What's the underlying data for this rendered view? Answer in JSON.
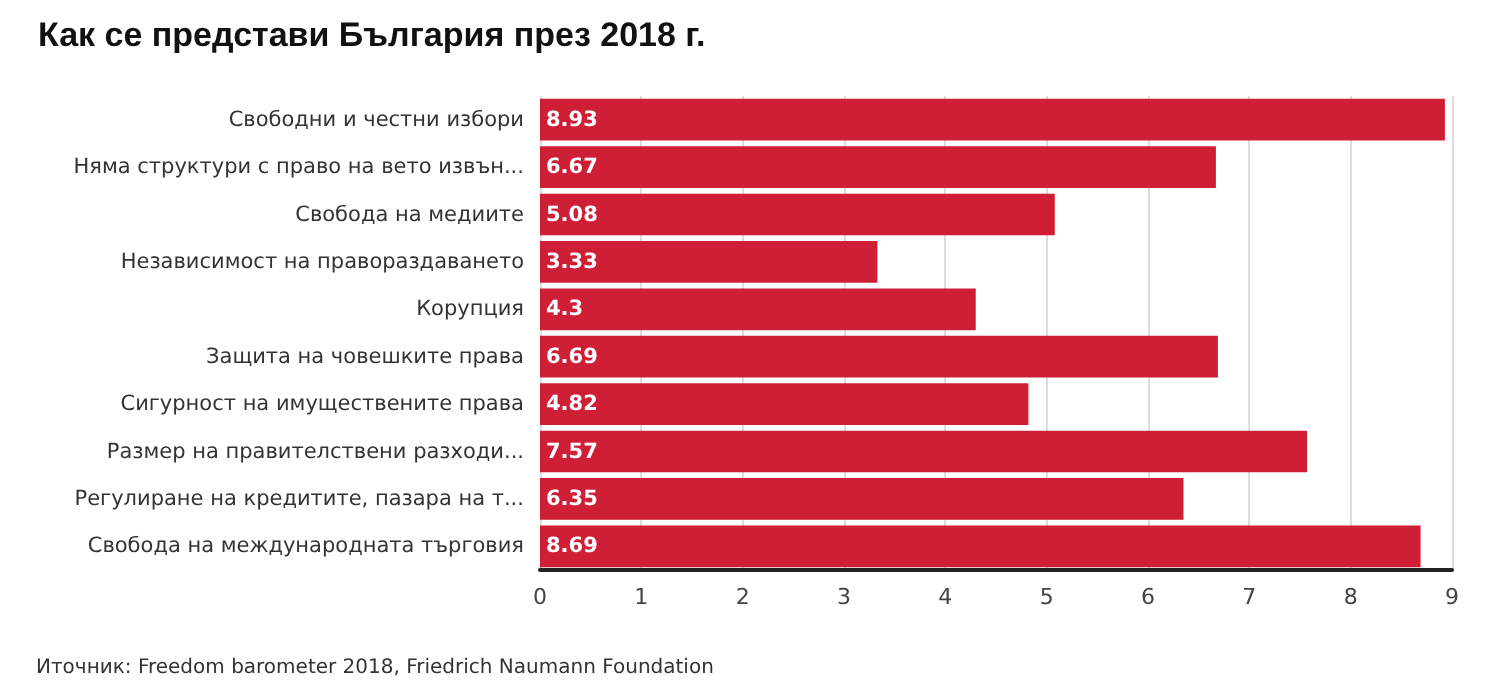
{
  "chart_data": {
    "type": "bar",
    "orientation": "horizontal",
    "title": "Как се представи България през 2018 г.",
    "categories": [
      "Свободни и честни избори",
      "Няма структури с право на вето извън...",
      "Свобода на медиите",
      "Независимост на правораздаването",
      "Корупция",
      "Защита на човешките права",
      "Сигурност на имуществените права",
      "Размер на правителствени разходи...",
      "Регулиране на кредитите, пазара на т...",
      "Свобода на международната търговия"
    ],
    "values": [
      8.93,
      6.67,
      5.08,
      3.33,
      4.3,
      6.69,
      4.82,
      7.57,
      6.35,
      8.69
    ],
    "color": "#cf1f36",
    "data_labels": true,
    "grid": "x",
    "xlim": [
      0,
      9
    ],
    "xticks": [
      0,
      1,
      2,
      3,
      4,
      5,
      6,
      7,
      8,
      9
    ],
    "annotations": [
      "Иточник: Freedom barometer 2018, Friedrich Naumann Foundation"
    ]
  }
}
